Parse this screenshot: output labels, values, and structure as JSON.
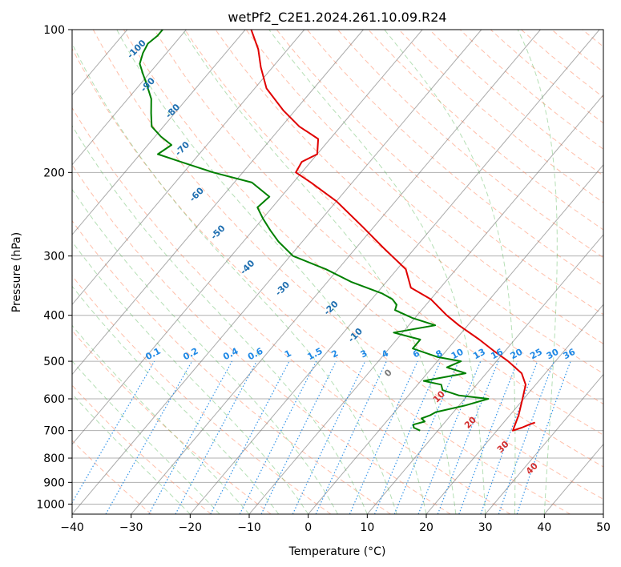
{
  "chart_data": {
    "type": "line",
    "title": "wetPf2_C2E1.2024.261.10.09.R24",
    "xlabel": "Temperature (°C)",
    "ylabel": "Pressure (hPa)",
    "xlim": [
      -40,
      50
    ],
    "ylim": [
      1050,
      100
    ],
    "y_scale": "log",
    "grid": true,
    "x_ticks": [
      "−40",
      "−30",
      "−20",
      "−10",
      "0",
      "10",
      "20",
      "30",
      "40",
      "50"
    ],
    "y_ticks": [
      "100",
      "200",
      "300",
      "400",
      "500",
      "600",
      "700",
      "800",
      "900",
      "1000"
    ],
    "isotherm_skew_deg_per_decade": 67.9,
    "colors": {
      "temperature": "#e00000",
      "dewpoint": "#008000",
      "dry_adiabat": "#ff8a65",
      "moist_adiabat": "#5cb85c",
      "mixing_ratio": "#1e88e5",
      "isotherm": "#666666",
      "label_blue": "#1f6fb0",
      "label_red": "#d32f2f"
    },
    "series": [
      {
        "key": "temperature",
        "points": [
          [
            25.3,
            673
          ],
          [
            24.6,
            680
          ],
          [
            23.8,
            690
          ],
          [
            22.7,
            700
          ],
          [
            21.5,
            650
          ],
          [
            19.8,
            600
          ],
          [
            18.3,
            560
          ],
          [
            16.0,
            530
          ],
          [
            12.0,
            500
          ],
          [
            8.0,
            475
          ],
          [
            4.0,
            450
          ],
          [
            -1.5,
            420
          ],
          [
            -5.0,
            400
          ],
          [
            -10.0,
            370
          ],
          [
            -15.0,
            350
          ],
          [
            -18.5,
            320
          ],
          [
            -25.0,
            290
          ],
          [
            -32.0,
            260
          ],
          [
            -40.0,
            230
          ],
          [
            -47.0,
            210
          ],
          [
            -51.0,
            200
          ],
          [
            -51.5,
            190
          ],
          [
            -50.0,
            183
          ],
          [
            -52.0,
            170
          ],
          [
            -57.0,
            160
          ],
          [
            -62.0,
            148
          ],
          [
            -68.0,
            133
          ],
          [
            -72.0,
            120
          ],
          [
            -75.0,
            110
          ],
          [
            -79.0,
            100
          ]
        ]
      },
      {
        "key": "dewpoint",
        "points": [
          [
            7.0,
            700
          ],
          [
            5.5,
            690
          ],
          [
            5.0,
            680
          ],
          [
            6.5,
            670
          ],
          [
            5.5,
            660
          ],
          [
            6.5,
            650
          ],
          [
            7.0,
            640
          ],
          [
            11.0,
            620
          ],
          [
            14.0,
            600
          ],
          [
            8.5,
            590
          ],
          [
            5.0,
            575
          ],
          [
            4.0,
            560
          ],
          [
            0.5,
            550
          ],
          [
            6.5,
            530
          ],
          [
            2.5,
            515
          ],
          [
            4.0,
            500
          ],
          [
            -0.5,
            490
          ],
          [
            -6.0,
            470
          ],
          [
            -6.0,
            450
          ],
          [
            -11.5,
            435
          ],
          [
            -5.5,
            420
          ],
          [
            -10.5,
            405
          ],
          [
            -14.5,
            390
          ],
          [
            -15.0,
            380
          ],
          [
            -16.5,
            370
          ],
          [
            -19.0,
            360
          ],
          [
            -26.0,
            340
          ],
          [
            -32.0,
            320
          ],
          [
            -39.5,
            300
          ],
          [
            -44.0,
            280
          ],
          [
            -47.0,
            265
          ],
          [
            -50.0,
            250
          ],
          [
            -52.5,
            237
          ],
          [
            -52.0,
            225
          ],
          [
            -57.0,
            210
          ],
          [
            -65.0,
            200
          ],
          [
            -72.0,
            190
          ],
          [
            -77.0,
            183
          ],
          [
            -76.0,
            175
          ],
          [
            -79.0,
            168
          ],
          [
            -82.0,
            160
          ],
          [
            -84.0,
            150
          ],
          [
            -86.0,
            140
          ],
          [
            -89.0,
            130
          ],
          [
            -91.0,
            124
          ],
          [
            -93.0,
            118
          ],
          [
            -94.0,
            112
          ],
          [
            -94.5,
            107
          ],
          [
            -94.0,
            103
          ],
          [
            -94.0,
            100
          ]
        ]
      }
    ],
    "mixing_ratio_labels": [
      "0.1",
      "0.2",
      "0.4",
      "0.6",
      "1",
      "1.5",
      "2",
      "3",
      "4",
      "6",
      "8",
      "10",
      "13",
      "16",
      "20",
      "25",
      "30",
      "36"
    ],
    "dry_adiabat_labels": [
      "-100",
      "-90",
      "-80",
      "-70",
      "-60",
      "-50",
      "-40",
      "-30",
      "-20",
      "-10",
      "0",
      "10",
      "20",
      "30",
      "40"
    ]
  }
}
